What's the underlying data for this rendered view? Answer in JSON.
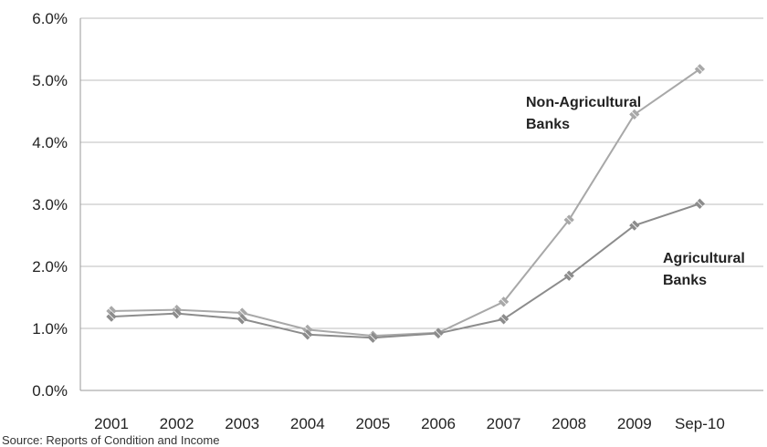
{
  "chart_data": {
    "type": "line",
    "title": "",
    "xlabel": "",
    "ylabel": "",
    "categories": [
      "2001",
      "2002",
      "2003",
      "2004",
      "2005",
      "2006",
      "2007",
      "2008",
      "2009",
      "Sep-10"
    ],
    "y_ticks": [
      "0.0%",
      "1.0%",
      "2.0%",
      "3.0%",
      "4.0%",
      "5.0%",
      "6.0%"
    ],
    "ylim": [
      0,
      6
    ],
    "y_unit": "%",
    "grid": "horizontal",
    "legend": "none",
    "series": [
      {
        "name": "Non-Agricultural Banks",
        "label_lines": [
          "Non-Agricultural",
          "Banks"
        ],
        "color": "#a8a8a8",
        "values": [
          1.28,
          1.3,
          1.25,
          0.98,
          0.88,
          0.93,
          1.43,
          2.75,
          4.45,
          5.18
        ]
      },
      {
        "name": "Agricultural Banks",
        "label_lines": [
          "Agricultural",
          "Banks"
        ],
        "color": "#8c8c8c",
        "values": [
          1.19,
          1.24,
          1.15,
          0.9,
          0.85,
          0.92,
          1.15,
          1.85,
          2.66,
          3.01
        ]
      }
    ]
  },
  "source": "Source: Reports of Condition and Income"
}
